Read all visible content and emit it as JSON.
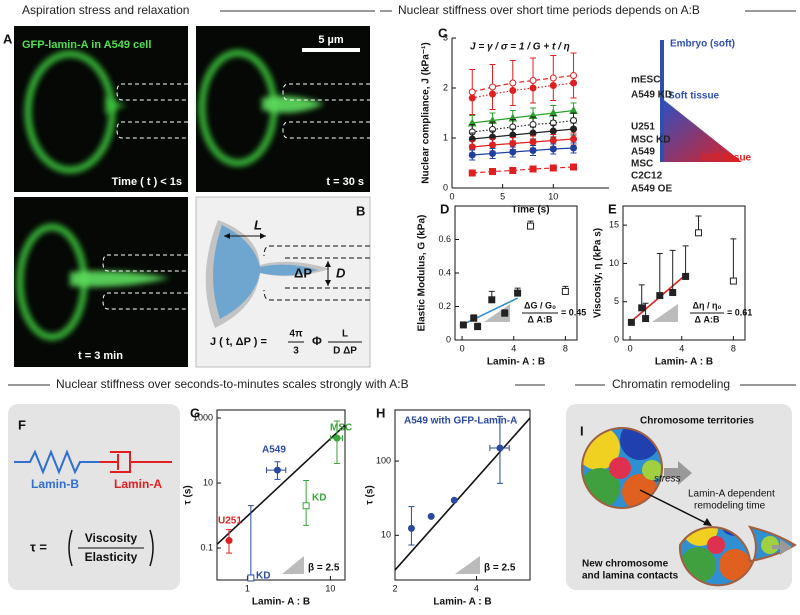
{
  "headers": [
    "Aspiration stress and relaxation",
    "Nuclear stiffness over short time periods depends on A:B",
    "Nuclear stiffness over seconds-to-minutes scales strongly with A:B",
    "Chromatin remodeling"
  ],
  "panel_a": {
    "label": "A",
    "caption": "GFP-lamin-A in A549 cell",
    "scale_bar": "5 µm",
    "times": [
      "Time ( t ) < 1s",
      "t = 30 s",
      "t = 3 min"
    ]
  },
  "panel_b": {
    "label": "B",
    "length": "L",
    "pressure": "ΔP",
    "diameter": "D",
    "equation_lhs": "J ( t, ΔP ) =",
    "coef_num": "4π",
    "coef_den": "3",
    "phi": "Φ",
    "frac_num": "L",
    "frac_den": "D ΔP"
  },
  "panel_f": {
    "label": "F",
    "spring": "Lamin-B",
    "dashpot": "Lamin-A",
    "tau": "τ =",
    "numerator": "Viscosity",
    "denominator": "Elasticity"
  },
  "panel_i": {
    "label": "I",
    "top": "Chromosome territories",
    "stress": "stress",
    "middle": [
      "Lamin-A dependent",
      "remodeling time"
    ],
    "bottom": [
      "New chromosome",
      "and lamina contacts"
    ]
  },
  "chart_data": [
    {
      "type": "line",
      "panel": "C",
      "formula": "J = γ / σ = 1 / G + t / η",
      "tissue_scale": [
        "Embryo (soft)",
        "Soft tissue",
        "Stiff tissue"
      ],
      "xlabel": "Time (s)",
      "ylabel": "Nuclear compliance, J (kPa⁻¹)",
      "frame": "axes",
      "name_color": "#222",
      "xlim": [
        0,
        15.5
      ],
      "xticks": [
        0,
        5,
        10
      ],
      "ylim": [
        0,
        3
      ],
      "yticks": [
        0,
        1,
        2,
        3
      ],
      "x": [
        2,
        4,
        6,
        8,
        10,
        12
      ],
      "series": [
        {
          "name": "mESC",
          "color": "#e02020",
          "marker": "circle",
          "hollow": true,
          "line_style": "dashed",
          "values": [
            1.92,
            2.02,
            2.1,
            2.15,
            2.2,
            2.25
          ],
          "errors": [
            0.45,
            0.45,
            0.45,
            0.45,
            0.45,
            0.45
          ]
        },
        {
          "name": "A549 KD",
          "color": "#e02020",
          "marker": "circle",
          "line_style": "dotted",
          "values": [
            1.8,
            1.88,
            1.95,
            2.0,
            2.05,
            2.1
          ]
        },
        {
          "name": "U251",
          "color": "#2aa02a",
          "marker": "triangle",
          "line_style": "solid",
          "values": [
            1.3,
            1.35,
            1.4,
            1.45,
            1.5,
            1.55
          ],
          "errors": [
            0.15,
            0.15,
            0.15,
            0.15,
            0.15,
            0.15
          ]
        },
        {
          "name": "MSC KD",
          "color": "#222222",
          "marker": "circle",
          "hollow": true,
          "line_style": "dotted",
          "values": [
            1.12,
            1.17,
            1.22,
            1.27,
            1.3,
            1.35
          ],
          "errors": [
            0.15,
            0.15,
            0.15,
            0.15,
            0.15,
            0.15
          ]
        },
        {
          "name": "A549",
          "color": "#222222",
          "marker": "circle",
          "line_style": "solid",
          "values": [
            0.98,
            1.02,
            1.06,
            1.1,
            1.14,
            1.18
          ],
          "errors": [
            0.12,
            0.12,
            0.12,
            0.12,
            0.12,
            0.12
          ]
        },
        {
          "name": "MSC",
          "color": "#e02020",
          "marker": "circle",
          "line_style": "solid",
          "values": [
            0.82,
            0.86,
            0.89,
            0.92,
            0.95,
            0.98
          ],
          "errors": [
            0.12,
            0.12,
            0.12,
            0.12,
            0.12,
            0.12
          ]
        },
        {
          "name": "C2C12",
          "color": "#2040a0",
          "marker": "circle",
          "line_style": "solid",
          "values": [
            0.66,
            0.69,
            0.72,
            0.75,
            0.78,
            0.8
          ],
          "errors": [
            0.1,
            0.1,
            0.1,
            0.1,
            0.1,
            0.1
          ]
        },
        {
          "name": "A549 OE",
          "color": "#e02020",
          "marker": "square",
          "line_style": "dashed",
          "values": [
            0.3,
            0.33,
            0.35,
            0.38,
            0.4,
            0.42
          ],
          "errors": [
            0.05,
            0.05,
            0.05,
            0.05,
            0.05,
            0.05
          ]
        }
      ]
    },
    {
      "type": "scatter",
      "panel": "D",
      "xlabel": "Lamin- A : B",
      "ylabel": "Elastic Modulus, G (kPa)",
      "frame": "box",
      "error_side": "up",
      "slope_num": "ΔG / G₀",
      "slope_den": "Δ A:B",
      "slope_value": "= 0.45",
      "xlim": [
        -0.55,
        8.9
      ],
      "xticks": [
        0,
        4,
        8
      ],
      "ylim": [
        0,
        0.8
      ],
      "yticks": [
        0,
        0.2,
        0.4,
        0.6
      ],
      "fit": {
        "color": "#2f8fd0",
        "x": [
          0,
          4.3
        ],
        "y": [
          0.09,
          0.25
        ]
      },
      "series": [
        {
          "color": "#222222",
          "marker": "square",
          "x": [
            0.1,
            0.9,
            1.2,
            2.3,
            3.3,
            4.3
          ],
          "values": [
            0.09,
            0.13,
            0.08,
            0.24,
            0.16,
            0.28
          ],
          "errors": [
            0.01,
            0.02,
            0.02,
            0.05,
            0.02,
            0.03
          ]
        },
        {
          "color": "#222222",
          "marker": "square",
          "hollow": true,
          "x": [
            5.3,
            8
          ],
          "values": [
            0.68,
            0.29
          ],
          "errors": [
            0.03,
            0.03
          ]
        }
      ]
    },
    {
      "type": "scatter",
      "panel": "E",
      "xlabel": "Lamin- A : B",
      "ylabel": "Viscosity, η (kPa s)",
      "frame": "box",
      "error_side": "up",
      "slope_num": "Δη / η₀",
      "slope_den": "Δ A:B",
      "slope_value": "= 0.61",
      "xlim": [
        -0.55,
        8.9
      ],
      "xticks": [
        0,
        4,
        8
      ],
      "ylim": [
        0,
        17.5
      ],
      "yticks": [
        0,
        5,
        10,
        15
      ],
      "fit": {
        "color": "#e02020",
        "x": [
          0,
          4.3
        ],
        "y": [
          2.3,
          8.5
        ]
      },
      "series": [
        {
          "color": "#222222",
          "marker": "square",
          "x": [
            0.1,
            0.9,
            1.2,
            2.3,
            3.3,
            4.3
          ],
          "values": [
            2.3,
            4.2,
            2.8,
            5.8,
            6.2,
            8.3
          ],
          "errors": [
            0,
            3,
            2,
            5.5,
            5.5,
            4
          ]
        },
        {
          "color": "#222222",
          "marker": "square",
          "hollow": true,
          "x": [
            5.3,
            8
          ],
          "values": [
            14,
            7.7
          ],
          "errors": [
            2.2,
            5.5
          ]
        }
      ]
    },
    {
      "type": "scatter",
      "panel": "G",
      "xlabel": "Lamin- A : B",
      "ylabel": "τ (s)",
      "frame": "box",
      "xscale": "log",
      "yscale": "log",
      "slope_value": "β = 2.5",
      "xlim": [
        0.43,
        15
      ],
      "xticks": [
        1,
        10
      ],
      "ylim": [
        0.0104,
        1763
      ],
      "yticks": [
        0.1,
        10,
        1000
      ],
      "fit": {
        "color": "#111111",
        "x": [
          0.43,
          15
        ],
        "y": [
          0.13,
          600
        ]
      },
      "series": [
        {
          "name": "U251",
          "color": "#e02020",
          "marker": "circle",
          "x": [
            0.6
          ],
          "values": [
            0.17
          ],
          "errors": [
            0.2
          ],
          "errors_minus": [
            0.1
          ]
        },
        {
          "name": "KD",
          "color": "#2a4aa0",
          "marker": "square",
          "hollow": true,
          "x": [
            1.1
          ],
          "values": [
            0.012
          ],
          "errors": [
            2
          ],
          "errors_minus": [
            0
          ]
        },
        {
          "name": "A549",
          "color": "#2a4aa0",
          "marker": "circle",
          "x": [
            2.3
          ],
          "values": [
            25
          ],
          "errors": [
            20
          ],
          "errors_minus": [
            12
          ],
          "xerrors": [
            0.6
          ]
        },
        {
          "name": "KD",
          "color": "#3aa53a",
          "marker": "square",
          "hollow": true,
          "x": [
            5.1
          ],
          "values": [
            2
          ],
          "errors": [
            10
          ],
          "errors_minus": [
            1.5
          ]
        },
        {
          "name": "MSC",
          "color": "#3aa53a",
          "marker": "circle",
          "x": [
            12
          ],
          "values": [
            240
          ],
          "errors": [
            570
          ],
          "errors_minus": [
            200
          ],
          "xerrors": [
            2
          ]
        }
      ]
    },
    {
      "type": "scatter",
      "panel": "H",
      "title": "A549 with GFP-Lamin-A",
      "xlabel": "Lamin- A : B",
      "ylabel": "τ (s)",
      "frame": "box",
      "xscale": "log",
      "yscale": "log",
      "slope_value": "β = 2.5",
      "xlim": [
        2,
        6.3
      ],
      "xticks": [
        2,
        4
      ],
      "ylim": [
        2.5,
        488
      ],
      "yticks": [
        10,
        100
      ],
      "fit": {
        "color": "#111111",
        "x": [
          2,
          6.3
        ],
        "y": [
          3.4,
          380
        ]
      },
      "series": [
        {
          "color": "#2a4aa0",
          "marker": "circle",
          "x": [
            2.3,
            2.72,
            3.31,
            4.88
          ],
          "values": [
            12.4,
            18,
            29.7,
            150
          ],
          "errors": [
            12,
            0,
            0,
            250
          ],
          "errors_minus": [
            5,
            0,
            0,
            100
          ],
          "xerrors": [
            0,
            0,
            0,
            0.4
          ]
        }
      ]
    }
  ]
}
